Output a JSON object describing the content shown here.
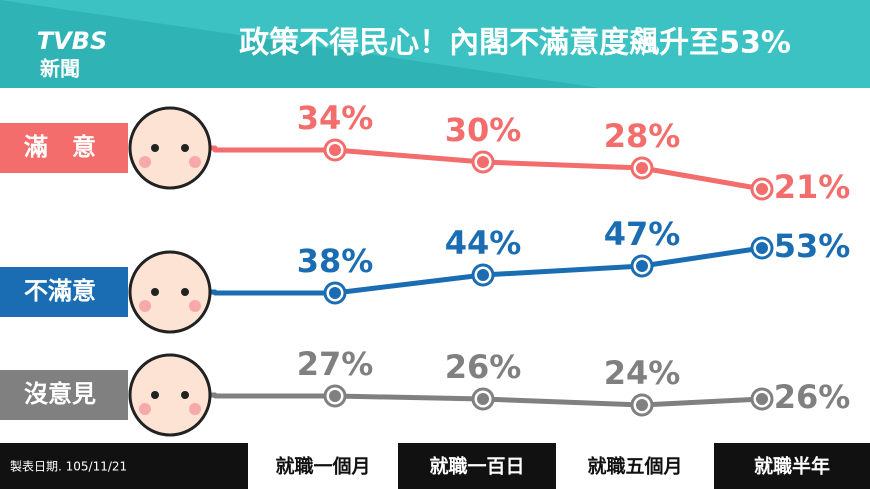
{
  "logo": {
    "brand": "TVBS",
    "sub": "新聞"
  },
  "chart_data": {
    "type": "line",
    "title": "政策不得民心！內閣不滿意度飆升至53%",
    "categories": [
      "就職一個月",
      "就職一百日",
      "就職五個月",
      "就職半年"
    ],
    "series": [
      {
        "name": "滿　意",
        "color": "#f26d6b",
        "values": [
          34,
          30,
          28,
          21
        ],
        "value_labels": [
          "34%",
          "30%",
          "28%",
          "21%"
        ]
      },
      {
        "name": "不滿意",
        "color": "#1b6db3",
        "values": [
          38,
          44,
          47,
          53
        ],
        "value_labels": [
          "38%",
          "44%",
          "47%",
          "53%"
        ]
      },
      {
        "name": "沒意見",
        "color": "#808080",
        "values": [
          27,
          26,
          24,
          26
        ],
        "value_labels": [
          "27%",
          "26%",
          "24%",
          "26%"
        ]
      }
    ],
    "footnote": "製表日期. 105/11/21"
  }
}
